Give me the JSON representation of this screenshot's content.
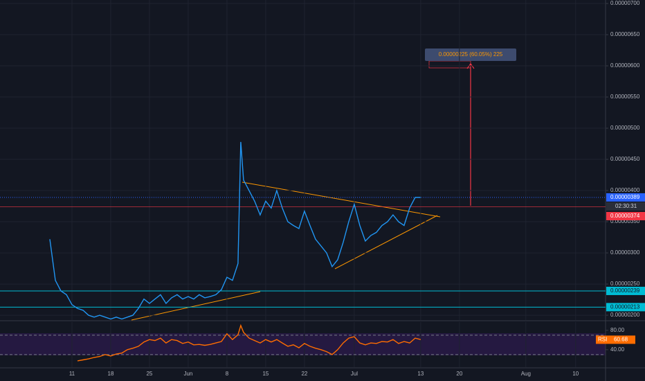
{
  "chart_data": [
    {
      "type": "line",
      "x": [
        -25,
        -24,
        -23,
        -22,
        -21,
        -20,
        -19,
        -18,
        -17,
        -16,
        -15,
        -14,
        -13,
        -12,
        -11,
        -10,
        -9,
        -8,
        -7,
        -6,
        -5,
        -4,
        -3,
        -2,
        -1,
        0,
        1,
        2,
        3,
        4,
        5,
        6,
        7,
        8,
        9,
        9.5,
        10,
        11,
        12,
        13,
        14,
        15,
        16,
        17,
        18,
        19,
        20,
        21,
        22,
        23,
        24,
        25,
        26,
        27,
        28,
        29,
        30,
        31,
        32,
        33,
        34,
        35,
        36,
        37,
        38,
        39,
        40,
        41,
        42
      ],
      "series": [
        {
          "color": "#2196f3",
          "values": [
            3.22e-06,
            2.56e-06,
            2.39e-06,
            2.33e-06,
            2.17e-06,
            2.11e-06,
            2.08e-06,
            2e-06,
            1.97e-06,
            2e-06,
            1.97e-06,
            1.94e-06,
            1.97e-06,
            1.94e-06,
            1.97e-06,
            2e-06,
            2.11e-06,
            2.26e-06,
            2.19e-06,
            2.26e-06,
            2.33e-06,
            2.19e-06,
            2.28e-06,
            2.33e-06,
            2.26e-06,
            2.3e-06,
            2.26e-06,
            2.33e-06,
            2.28e-06,
            2.3e-06,
            2.33e-06,
            2.41e-06,
            2.61e-06,
            2.56e-06,
            2.83e-06,
            4.78e-06,
            4.17e-06,
            4e-06,
            3.83e-06,
            3.61e-06,
            3.83e-06,
            3.72e-06,
            4e-06,
            3.72e-06,
            3.5e-06,
            3.44e-06,
            3.39e-06,
            3.67e-06,
            3.44e-06,
            3.22e-06,
            3.11e-06,
            3e-06,
            2.78e-06,
            2.89e-06,
            3.17e-06,
            3.5e-06,
            3.78e-06,
            3.44e-06,
            3.19e-06,
            3.28e-06,
            3.33e-06,
            3.44e-06,
            3.5e-06,
            3.61e-06,
            3.5e-06,
            3.44e-06,
            3.72e-06,
            3.89e-06,
            3.89e-06
          ]
        }
      ],
      "xlim": [
        -34,
        75.4
      ],
      "xticks": [
        {
          "value": -21,
          "label": "11"
        },
        {
          "value": -14,
          "label": "18"
        },
        {
          "value": -7,
          "label": "25"
        },
        {
          "value": 0,
          "label": "Jun"
        },
        {
          "value": 7,
          "label": "8"
        },
        {
          "value": 14,
          "label": "15"
        },
        {
          "value": 21,
          "label": "22"
        },
        {
          "value": 30,
          "label": "Jul"
        },
        {
          "value": 42,
          "label": "13"
        },
        {
          "value": 49,
          "label": "20"
        },
        {
          "value": 61,
          "label": "Aug"
        },
        {
          "value": 70,
          "label": "10"
        }
      ],
      "ylim": [
        1.923e-06,
        7.056e-06
      ],
      "yticks": [
        {
          "value": 2e-06,
          "label": "0.00000200"
        },
        {
          "value": 2.5e-06,
          "label": "0.00000250"
        },
        {
          "value": 3e-06,
          "label": "0.00000300"
        },
        {
          "value": 3.5e-06,
          "label": "0.00000350"
        },
        {
          "value": 4e-06,
          "label": "0.00000400"
        },
        {
          "value": 4.5e-06,
          "label": "0.00000450"
        },
        {
          "value": 5e-06,
          "label": "0.00000500"
        },
        {
          "value": 5.5e-06,
          "label": "0.00000550"
        },
        {
          "value": 6e-06,
          "label": "0.00000600"
        },
        {
          "value": 6.5e-06,
          "label": "0.00000650"
        },
        {
          "value": 7e-06,
          "label": "0.00000700"
        }
      ],
      "grid": true,
      "price_lines": [
        {
          "value": 3.89e-06,
          "label": "0.00000389",
          "color": "#2962ff"
        },
        {
          "value": 3.74e-06,
          "label": "0.00000374",
          "color": "#f23645"
        },
        {
          "value": 2.39e-06,
          "label": "0.00000239",
          "color": "#00bcd4"
        },
        {
          "value": 2.13e-06,
          "label": "0.00000213",
          "color": "#00bcd4"
        }
      ],
      "countdown": "02:30:31",
      "measure_label": "0.00000225 (60.05%) 225"
    },
    {
      "type": "line",
      "x": [
        -20,
        -19,
        -18,
        -17,
        -16,
        -15,
        -14,
        -13,
        -12,
        -11,
        -10,
        -9,
        -8,
        -7,
        -6,
        -5,
        -4,
        -3,
        -2,
        -1,
        0,
        1,
        2,
        3,
        4,
        5,
        6,
        7,
        8,
        9,
        9.5,
        10,
        11,
        12,
        13,
        14,
        15,
        16,
        17,
        18,
        19,
        20,
        21,
        22,
        23,
        24,
        25,
        26,
        27,
        28,
        29,
        30,
        31,
        32,
        33,
        34,
        35,
        36,
        37,
        38,
        39,
        40,
        41,
        42
      ],
      "series": [
        {
          "name": "RSI",
          "color": "#ff6d00",
          "values": [
            17,
            19,
            21,
            24,
            26,
            30,
            27,
            31,
            33,
            40,
            43,
            47,
            56,
            61,
            59,
            64,
            54,
            61,
            59,
            53,
            56,
            50,
            51,
            49,
            51,
            54,
            57,
            73,
            61,
            71,
            90,
            76,
            64,
            59,
            54,
            61,
            56,
            61,
            54,
            47,
            50,
            44,
            53,
            47,
            43,
            40,
            36,
            30,
            40,
            54,
            64,
            67,
            54,
            50,
            54,
            53,
            57,
            56,
            61,
            53,
            57,
            54,
            64,
            61
          ]
        }
      ],
      "last_value": 60.68,
      "ylim": [
        4,
        97
      ],
      "yticks": [
        {
          "value": 80,
          "label": "80.00"
        },
        {
          "value": 40,
          "label": "40.00"
        }
      ],
      "bands": [
        30,
        70
      ]
    }
  ]
}
